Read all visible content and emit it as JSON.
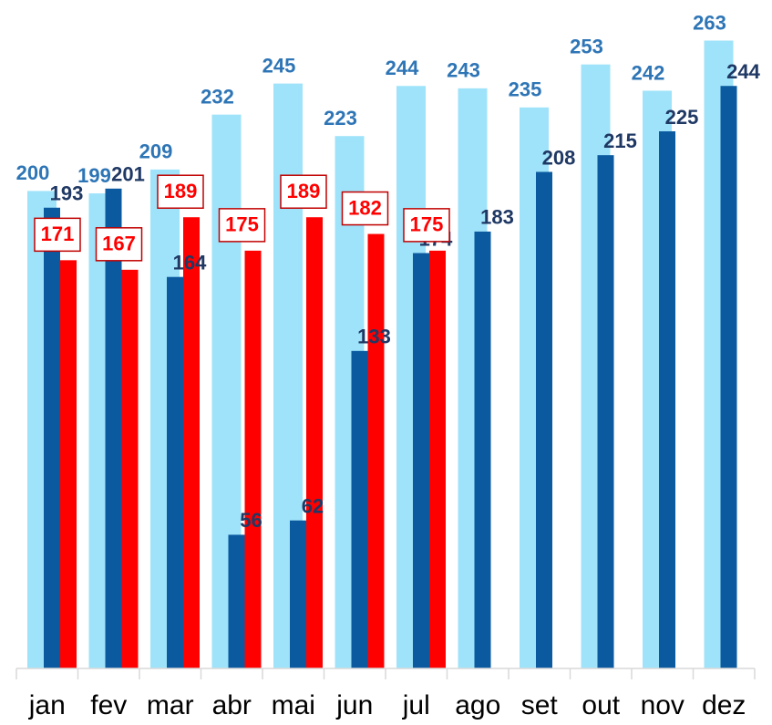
{
  "chart_data": {
    "type": "bar",
    "categories": [
      "jan",
      "fev",
      "mar",
      "abr",
      "mai",
      "jun",
      "jul",
      "ago",
      "set",
      "out",
      "nov",
      "dez"
    ],
    "series": [
      {
        "color": "#9fe3fa",
        "label_color": "#2e75b6",
        "values": [
          200,
          199,
          209,
          232,
          245,
          223,
          244,
          243,
          235,
          253,
          242,
          263
        ]
      },
      {
        "color": "#0b5aa0",
        "label_color": "#1f3864",
        "values": [
          193,
          201,
          164,
          56,
          62,
          133,
          174,
          183,
          208,
          215,
          225,
          244
        ]
      },
      {
        "color": "#ff0000",
        "label_color": "#ff0000",
        "values": [
          171,
          167,
          189,
          175,
          189,
          182,
          175,
          null,
          null,
          null,
          null,
          null
        ]
      }
    ],
    "ylim": [
      0,
      280
    ]
  }
}
